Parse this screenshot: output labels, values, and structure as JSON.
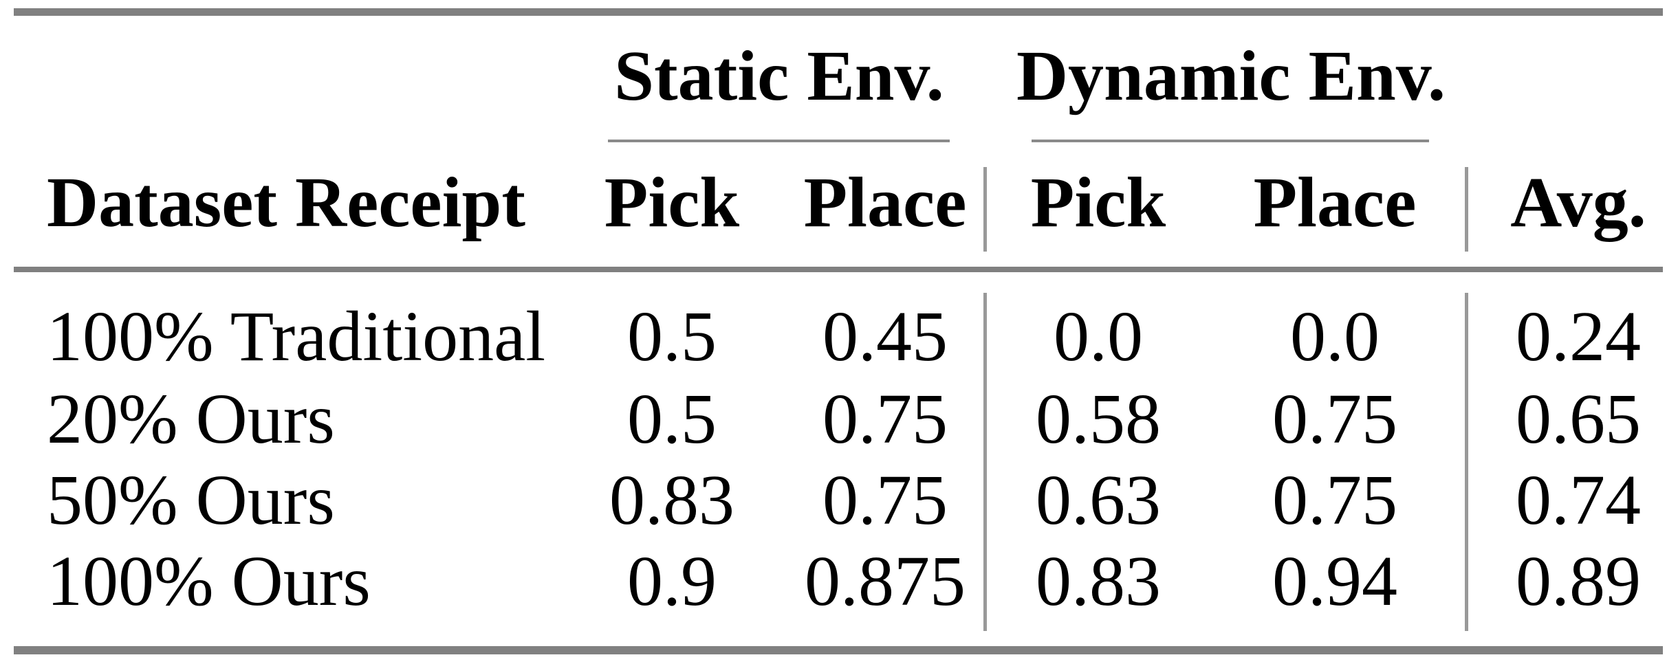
{
  "table": {
    "groups": {
      "static": "Static Env.",
      "dynamic": "Dynamic Env."
    },
    "headers": {
      "row_header": "Dataset Receipt",
      "static_pick": "Pick",
      "static_place": "Place",
      "dynamic_pick": "Pick",
      "dynamic_place": "Place",
      "avg": "Avg."
    },
    "rows": [
      {
        "label": "100% Traditional",
        "values": [
          "0.5",
          "0.45",
          "0.0",
          "0.0",
          "0.24"
        ]
      },
      {
        "label": "20% Ours",
        "values": [
          "0.5",
          "0.75",
          "0.58",
          "0.75",
          "0.65"
        ]
      },
      {
        "label": "50% Ours",
        "values": [
          "0.83",
          "0.75",
          "0.63",
          "0.75",
          "0.74"
        ]
      },
      {
        "label": "100% Ours",
        "values": [
          "0.9",
          "0.875",
          "0.83",
          "0.94",
          "0.89"
        ]
      }
    ],
    "colors": {
      "rule": "#808080",
      "cmidrule": "#8a8a8a",
      "separator": "#999999",
      "text": "#000000",
      "background": "#ffffff"
    }
  },
  "chart_data": {
    "type": "table",
    "column_groups": [
      {
        "label": "",
        "columns": [
          "Dataset Receipt"
        ]
      },
      {
        "label": "Static Env.",
        "columns": [
          "Pick",
          "Place"
        ]
      },
      {
        "label": "Dynamic Env.",
        "columns": [
          "Pick",
          "Place"
        ]
      },
      {
        "label": "",
        "columns": [
          "Avg."
        ]
      }
    ],
    "rows": [
      {
        "dataset_receipt": "100% Traditional",
        "static_pick": 0.5,
        "static_place": 0.45,
        "dynamic_pick": 0.0,
        "dynamic_place": 0.0,
        "avg": 0.24
      },
      {
        "dataset_receipt": "20% Ours",
        "static_pick": 0.5,
        "static_place": 0.75,
        "dynamic_pick": 0.58,
        "dynamic_place": 0.75,
        "avg": 0.65
      },
      {
        "dataset_receipt": "50% Ours",
        "static_pick": 0.83,
        "static_place": 0.75,
        "dynamic_pick": 0.63,
        "dynamic_place": 0.75,
        "avg": 0.74
      },
      {
        "dataset_receipt": "100% Ours",
        "static_pick": 0.9,
        "static_place": 0.875,
        "dynamic_pick": 0.83,
        "dynamic_place": 0.94,
        "avg": 0.89
      }
    ]
  }
}
